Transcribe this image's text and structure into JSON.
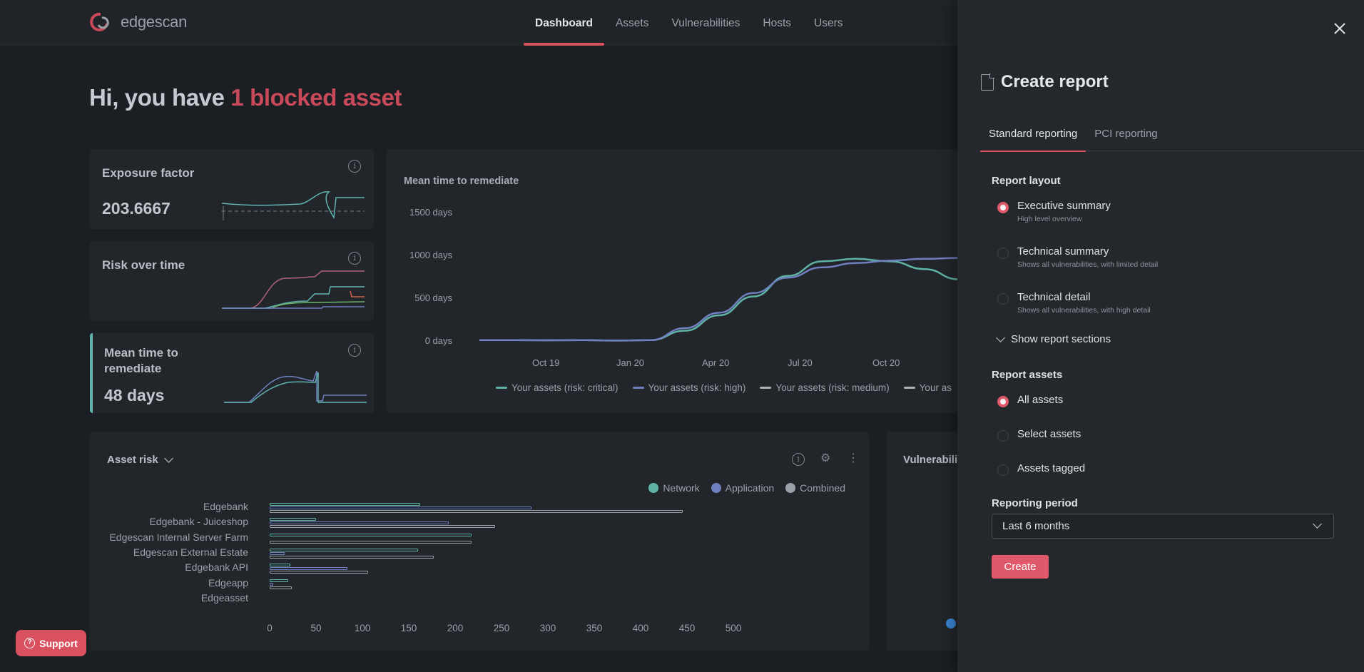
{
  "app": {
    "brand": "edgescan",
    "nav": [
      "Dashboard",
      "Assets",
      "Vulnerabilities",
      "Hosts",
      "Users"
    ],
    "active_nav": "Dashboard"
  },
  "greeting": {
    "prefix": "Hi, you have ",
    "highlight": "1 blocked asset"
  },
  "widgets": {
    "exposure": {
      "title": "Exposure factor",
      "value": "203.6667"
    },
    "risk": {
      "title": "Risk over time"
    },
    "mttr": {
      "title_line1": "Mean time to",
      "title_line2": "remediate",
      "value": "48 days"
    }
  },
  "mttr_chart": {
    "title": "Mean time to remediate",
    "chart_data": {
      "type": "line",
      "title": "Mean time to remediate",
      "y_ticks": [
        "1500 days",
        "1000 days",
        "500 days",
        "0 days"
      ],
      "x_ticks": [
        "Oct 19",
        "Jan 20",
        "Apr 20",
        "Jul 20",
        "Oct 20"
      ],
      "ylim": [
        0,
        1500
      ],
      "series": [
        {
          "name": "Your assets (risk: critical)",
          "color": "#5fb3a4",
          "points": [
            [
              0,
              10
            ],
            [
              1,
              10
            ],
            [
              2,
              8
            ],
            [
              3,
              10
            ],
            [
              4,
              5
            ],
            [
              5,
              10
            ],
            [
              6,
              120
            ],
            [
              7,
              300
            ],
            [
              8,
              520
            ],
            [
              9,
              760
            ],
            [
              10,
              930
            ],
            [
              11,
              960
            ],
            [
              12,
              930
            ],
            [
              13,
              840
            ],
            [
              14,
              720
            ]
          ]
        },
        {
          "name": "Your assets (risk: high)",
          "color": "#6f7fbf",
          "points": [
            [
              0,
              10
            ],
            [
              1,
              10
            ],
            [
              2,
              8
            ],
            [
              3,
              10
            ],
            [
              4,
              5
            ],
            [
              5,
              10
            ],
            [
              6,
              150
            ],
            [
              7,
              330
            ],
            [
              8,
              560
            ],
            [
              9,
              740
            ],
            [
              10,
              860
            ],
            [
              11,
              910
            ],
            [
              12,
              940
            ],
            [
              13,
              960
            ],
            [
              14,
              970
            ]
          ]
        }
      ],
      "legend": [
        "Your assets (risk: critical)",
        "Your assets (risk: high)",
        "Your assets (risk: medium)",
        "Your as"
      ]
    }
  },
  "asset_risk": {
    "title": "Asset risk",
    "legend": [
      "Network",
      "Application",
      "Combined"
    ],
    "chart_data": {
      "type": "bar",
      "categories": [
        "Edgebank",
        "Edgebank - Juiceshop",
        "Edgescan Internal Server Farm",
        "Edgescan External Estate",
        "Edgebank API",
        "Edgeapp",
        "Edgeasset"
      ],
      "x_ticks": [
        "0",
        "50",
        "100",
        "150",
        "200",
        "250",
        "300",
        "350",
        "400",
        "450",
        "500"
      ],
      "xlim": [
        0,
        500
      ],
      "series": [
        {
          "name": "Network",
          "color": "#5fb3a4",
          "values": [
            162,
            50,
            218,
            160,
            22,
            20,
            0
          ]
        },
        {
          "name": "Application",
          "color": "#6f7fbf",
          "values": [
            282,
            193,
            0,
            16,
            84,
            4,
            0
          ]
        },
        {
          "name": "Combined",
          "color": "#9aa0a8",
          "values": [
            445,
            243,
            218,
            177,
            106,
            24,
            0
          ]
        }
      ]
    }
  },
  "vuln_card": {
    "title": "Vulnerabili"
  },
  "support": {
    "label": "Support"
  },
  "panel": {
    "title": "Create report",
    "tabs": [
      "Standard reporting",
      "PCI reporting"
    ],
    "layout_label": "Report layout",
    "layouts": [
      {
        "label": "Executive summary",
        "sub": "High level overview",
        "selected": true
      },
      {
        "label": "Technical summary",
        "sub": "Shows all vulnerabilities, with limited detail",
        "selected": false
      },
      {
        "label": "Technical detail",
        "sub": "Shows all vulnerabilities, with high detail",
        "selected": false
      }
    ],
    "show_sections": "Show report sections",
    "assets_label": "Report assets",
    "assets": [
      "All assets",
      "Select assets",
      "Assets tagged"
    ],
    "period_label": "Reporting period",
    "period_value": "Last 6 months",
    "create": "Create"
  }
}
